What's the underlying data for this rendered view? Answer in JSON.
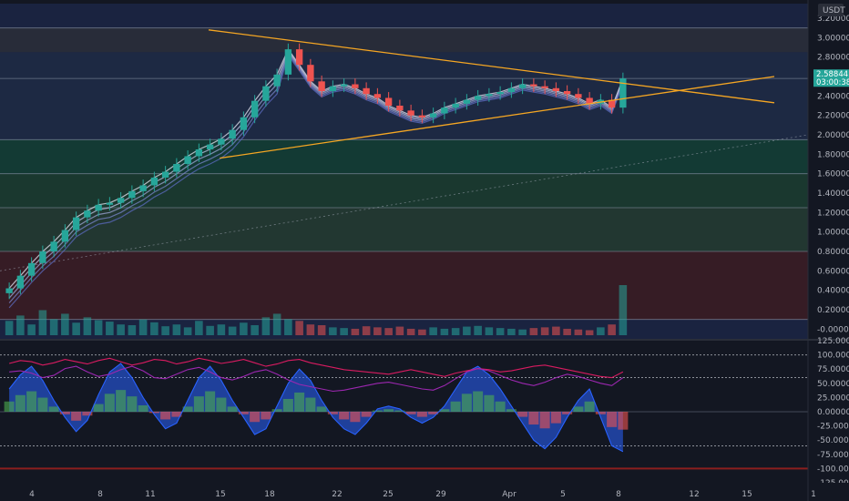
{
  "chart_data": [
    {
      "type": "candlestick",
      "quote_label": "USDT",
      "current_price": "2.58844",
      "countdown": "03:00:38",
      "ylim": [
        -0.1,
        3.35
      ],
      "y_ticks": [
        "3.20000",
        "3.00000",
        "2.80000",
        "2.60000",
        "2.40000",
        "2.20000",
        "2.00000",
        "1.80000",
        "1.60000",
        "1.40000",
        "1.20000",
        "1.00000",
        "0.80000",
        "0.60000",
        "0.40000",
        "0.20000",
        "-0.00000"
      ],
      "y_tick_values": [
        3.2,
        3.0,
        2.8,
        2.6,
        2.4,
        2.2,
        2.0,
        1.8,
        1.6,
        1.4,
        1.2,
        1.0,
        0.8,
        0.6,
        0.4,
        0.2,
        0.0
      ],
      "x_ticks": [
        "4",
        "8",
        "11",
        "15",
        "18",
        "22",
        "25",
        "29",
        "Apr",
        "5",
        "8",
        "12",
        "15",
        "1"
      ],
      "zones": [
        {
          "from": 2.85,
          "to": 3.1,
          "color": "#2a2e39"
        },
        {
          "from": 1.95,
          "to": 2.85,
          "color": "#1e2a44"
        },
        {
          "from": 1.6,
          "to": 1.95,
          "color": "#133d33"
        },
        {
          "from": 1.25,
          "to": 1.6,
          "color": "#1b3b2e"
        },
        {
          "from": 0.8,
          "to": 1.25,
          "color": "#233a30"
        },
        {
          "from": 0.1,
          "to": 0.8,
          "color": "#3a1c22"
        }
      ],
      "levels": [
        3.1,
        2.58,
        1.95,
        1.6,
        1.25,
        0.8,
        0.1
      ],
      "trendlines": [
        {
          "from": [
            0,
            3.08
          ],
          "to": [
            56,
            2.33
          ],
          "color": "#f5a623"
        },
        {
          "from": [
            1,
            1.76
          ],
          "to": [
            56,
            2.6
          ],
          "color": "#f5a623"
        }
      ],
      "candles_close": [
        0.42,
        0.55,
        0.68,
        0.8,
        0.9,
        1.02,
        1.15,
        1.22,
        1.28,
        1.3,
        1.35,
        1.42,
        1.48,
        1.56,
        1.62,
        1.7,
        1.78,
        1.85,
        1.9,
        1.96,
        2.05,
        2.18,
        2.35,
        2.5,
        2.62,
        2.88,
        2.72,
        2.55,
        2.45,
        2.5,
        2.52,
        2.48,
        2.42,
        2.38,
        2.3,
        2.25,
        2.2,
        2.18,
        2.22,
        2.28,
        2.32,
        2.36,
        2.4,
        2.42,
        2.44,
        2.48,
        2.52,
        2.5,
        2.48,
        2.45,
        2.42,
        2.38,
        2.32,
        2.36,
        2.28,
        2.58
      ],
      "volume": [
        40,
        55,
        30,
        70,
        45,
        60,
        35,
        50,
        42,
        38,
        30,
        28,
        44,
        36,
        25,
        30,
        22,
        40,
        26,
        30,
        24,
        35,
        28,
        50,
        60,
        45,
        40,
        30,
        28,
        22,
        20,
        18,
        25,
        22,
        20,
        24,
        18,
        16,
        22,
        18,
        20,
        24,
        26,
        22,
        20,
        18,
        16,
        20,
        22,
        24,
        18,
        16,
        14,
        22,
        30,
        140
      ]
    },
    {
      "type": "line",
      "ylim": [
        -125,
        125
      ],
      "y_ticks": [
        "125.00000",
        "100.00000",
        "75.00000",
        "50.00000",
        "25.00000",
        "0.00000",
        "-25.00000",
        "-50.00000",
        "-75.00000",
        "-100.00000",
        "-125.00000"
      ],
      "y_tick_values": [
        125,
        100,
        75,
        50,
        25,
        0,
        -25,
        -50,
        -75,
        -100,
        -125
      ],
      "levels": [
        100,
        60,
        -60
      ],
      "series": [
        {
          "color": "#2962ff",
          "values": [
            40,
            65,
            80,
            55,
            20,
            -10,
            -35,
            -15,
            30,
            70,
            85,
            60,
            25,
            -5,
            -30,
            -20,
            20,
            60,
            80,
            55,
            20,
            -10,
            -40,
            -30,
            10,
            50,
            75,
            55,
            20,
            -10,
            -30,
            -40,
            -20,
            5,
            10,
            5,
            -10,
            -20,
            -10,
            10,
            40,
            70,
            80,
            65,
            40,
            10,
            -20,
            -50,
            -65,
            -45,
            -10,
            20,
            40,
            -10,
            -60,
            -70
          ]
        },
        {
          "color": "#d81b60",
          "values": [
            85,
            90,
            88,
            82,
            86,
            92,
            88,
            84,
            90,
            94,
            88,
            82,
            86,
            92,
            90,
            84,
            88,
            94,
            90,
            85,
            88,
            92,
            86,
            80,
            84,
            90,
            92,
            86,
            82,
            78,
            74,
            72,
            70,
            68,
            66,
            70,
            74,
            70,
            66,
            62,
            68,
            72,
            76,
            74,
            70,
            72,
            76,
            80,
            82,
            78,
            74,
            70,
            66,
            62,
            60,
            70
          ]
        },
        {
          "color": "#9c27b0",
          "values": [
            70,
            72,
            68,
            60,
            64,
            76,
            80,
            70,
            62,
            66,
            74,
            80,
            72,
            60,
            58,
            66,
            74,
            78,
            70,
            60,
            56,
            62,
            70,
            74,
            66,
            56,
            48,
            44,
            40,
            36,
            38,
            42,
            46,
            50,
            52,
            48,
            44,
            40,
            38,
            46,
            58,
            70,
            76,
            72,
            64,
            56,
            50,
            46,
            52,
            60,
            66,
            62,
            56,
            50,
            46,
            60
          ]
        }
      ]
    }
  ]
}
